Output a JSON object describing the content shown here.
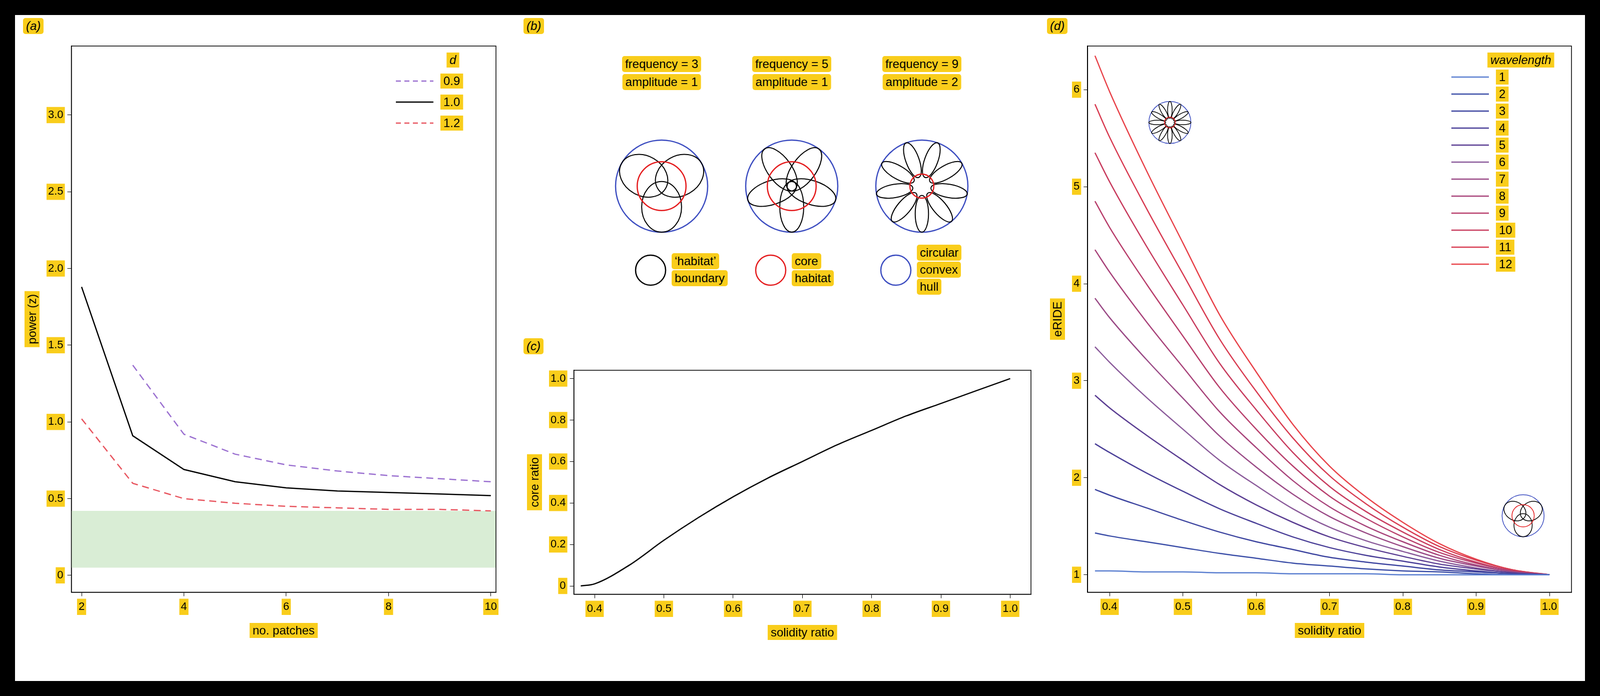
{
  "chart_data": [
    {
      "panel": "(a)",
      "type": "line",
      "x_label": "no. patches",
      "y_label": "power (z)",
      "x": [
        2,
        3,
        4,
        5,
        6,
        7,
        8,
        9,
        10
      ],
      "series": [
        {
          "name": "0.9",
          "color": "#9a6fd0",
          "line_style": "dashed",
          "values": [
            null,
            1.37,
            0.92,
            0.79,
            0.72,
            0.68,
            0.65,
            0.63,
            0.61
          ]
        },
        {
          "name": "1.0",
          "color": "#000000",
          "line_style": "solid",
          "values": [
            1.88,
            0.91,
            0.69,
            0.61,
            0.57,
            0.55,
            0.54,
            0.53,
            0.52
          ]
        },
        {
          "name": "1.2",
          "color": "#e8555f",
          "line_style": "dashed",
          "values": [
            1.02,
            0.6,
            0.5,
            0.47,
            0.45,
            0.44,
            0.43,
            0.43,
            0.42
          ]
        }
      ],
      "legend_title": "d",
      "legend": "top-right",
      "band": {
        "y": [
          0.05,
          0.42
        ],
        "color": "#d9edd5"
      },
      "xlim": [
        1.8,
        10.1
      ],
      "xticks": [
        2,
        4,
        6,
        8,
        10
      ],
      "ylim": [
        -0.11,
        3.45
      ],
      "yticks": [
        0,
        0.5,
        {
          "value": 1,
          "label": "1.0"
        },
        1.5,
        {
          "value": 2,
          "label": "2.0"
        },
        2.5,
        {
          "value": 3,
          "label": "3.0"
        }
      ],
      "grid": false
    },
    {
      "panel": "(c)",
      "type": "line",
      "x_label": "solidity ratio",
      "y_label": "core ratio",
      "x": [
        0.38,
        0.4,
        0.45,
        0.5,
        0.55,
        0.6,
        0.65,
        0.7,
        0.75,
        0.8,
        0.85,
        0.9,
        0.95,
        1.0
      ],
      "values": [
        0,
        0.01,
        0.1,
        0.22,
        0.33,
        0.43,
        0.52,
        0.6,
        0.68,
        0.75,
        0.82,
        0.88,
        0.94,
        1.0
      ],
      "color": "#000000",
      "xlim": [
        0.37,
        1.03
      ],
      "xticks": [
        0.4,
        0.5,
        0.6,
        0.7,
        0.8,
        0.9,
        {
          "value": 1,
          "label": "1.0"
        }
      ],
      "ylim": [
        -0.04,
        1.04
      ],
      "yticks": [
        0,
        0.2,
        0.4,
        0.6,
        0.8,
        {
          "value": 1,
          "label": "1.0"
        }
      ],
      "grid": false
    },
    {
      "panel": "(d)",
      "type": "line",
      "x_label": "solidity ratio",
      "y_label": "eRIDE",
      "x": [
        0.38,
        0.4,
        0.45,
        0.5,
        0.55,
        0.6,
        0.65,
        0.7,
        0.75,
        0.8,
        0.85,
        0.9,
        0.95,
        1.0
      ],
      "series": [
        {
          "name": "1",
          "color": "#5b7fd0",
          "values": [
            1.04,
            1.04,
            1.03,
            1.03,
            1.02,
            1.02,
            1.01,
            1.01,
            1.01,
            1.0,
            1.0,
            1.0,
            1.0,
            1.0
          ]
        },
        {
          "name": "2",
          "color": "#3c4fa8",
          "values": [
            1.43,
            1.4,
            1.34,
            1.28,
            1.22,
            1.17,
            1.12,
            1.09,
            1.06,
            1.04,
            1.03,
            1.01,
            1.0,
            1.0
          ]
        },
        {
          "name": "3",
          "color": "#3d45a0",
          "values": [
            1.88,
            1.82,
            1.69,
            1.56,
            1.44,
            1.34,
            1.26,
            1.18,
            1.13,
            1.09,
            1.05,
            1.03,
            1.01,
            1.0
          ]
        },
        {
          "name": "4",
          "color": "#4a3f98",
          "values": [
            2.35,
            2.26,
            2.05,
            1.86,
            1.68,
            1.53,
            1.39,
            1.28,
            1.2,
            1.14,
            1.08,
            1.04,
            1.01,
            1.0
          ]
        },
        {
          "name": "5",
          "color": "#5a3d92",
          "values": [
            2.85,
            2.72,
            2.44,
            2.18,
            1.93,
            1.72,
            1.54,
            1.39,
            1.28,
            1.19,
            1.11,
            1.06,
            1.02,
            1.0
          ]
        },
        {
          "name": "6",
          "color": "#8a5a9a",
          "values": [
            3.35,
            3.19,
            2.83,
            2.5,
            2.18,
            1.92,
            1.68,
            1.49,
            1.35,
            1.24,
            1.14,
            1.07,
            1.02,
            1.0
          ]
        },
        {
          "name": "7",
          "color": "#9a4a86",
          "values": [
            3.85,
            3.65,
            3.22,
            2.82,
            2.43,
            2.11,
            1.83,
            1.6,
            1.43,
            1.29,
            1.17,
            1.09,
            1.03,
            1.0
          ]
        },
        {
          "name": "8",
          "color": "#a8437a",
          "values": [
            4.35,
            4.12,
            3.61,
            3.14,
            2.68,
            2.31,
            1.97,
            1.7,
            1.5,
            1.34,
            1.2,
            1.1,
            1.03,
            1.0
          ]
        },
        {
          "name": "9",
          "color": "#b83f6c",
          "values": [
            4.85,
            4.58,
            4.0,
            3.46,
            2.93,
            2.5,
            2.12,
            1.81,
            1.58,
            1.39,
            1.23,
            1.12,
            1.04,
            1.0
          ]
        },
        {
          "name": "10",
          "color": "#c83c5e",
          "values": [
            5.35,
            5.05,
            4.39,
            3.78,
            3.18,
            2.7,
            2.26,
            1.91,
            1.65,
            1.44,
            1.26,
            1.13,
            1.04,
            1.0
          ]
        },
        {
          "name": "11",
          "color": "#d83c52",
          "values": [
            5.85,
            5.51,
            4.78,
            4.1,
            3.43,
            2.89,
            2.41,
            2.02,
            1.73,
            1.49,
            1.29,
            1.15,
            1.05,
            1.0
          ]
        },
        {
          "name": "12",
          "color": "#e8434a",
          "values": [
            6.35,
            5.98,
            5.17,
            4.42,
            3.68,
            3.09,
            2.55,
            2.12,
            1.8,
            1.54,
            1.32,
            1.16,
            1.05,
            1.0
          ]
        }
      ],
      "legend_title": "wavelength",
      "legend": "top-right",
      "xlim": [
        0.37,
        1.03
      ],
      "xticks": [
        0.4,
        0.5,
        0.6,
        0.7,
        0.8,
        0.9,
        {
          "value": 1,
          "label": "1.0"
        }
      ],
      "ylim": [
        0.82,
        6.45
      ],
      "yticks": [
        1,
        2,
        3,
        4,
        5,
        6
      ],
      "grid": false
    }
  ],
  "diagram": {
    "panel": "(b)",
    "shapes": [
      {
        "frequency": {
          "value": 3,
          "label": "frequency = 3"
        },
        "amplitude": {
          "value": 1,
          "label": "amplitude = 1"
        }
      },
      {
        "frequency": {
          "value": 5,
          "label": "frequency = 5"
        },
        "amplitude": {
          "value": 1,
          "label": "amplitude = 1"
        }
      },
      {
        "frequency": {
          "value": 9,
          "label": "frequency = 9"
        },
        "amplitude": {
          "value": 2,
          "label": "amplitude = 2"
        }
      }
    ],
    "legend": [
      {
        "label": "‘habitat’ boundary",
        "color": "#000000"
      },
      {
        "label": "core habitat",
        "color": "#e41a1c"
      },
      {
        "label": "circular convex hull",
        "color": "#3b4cc0"
      }
    ]
  }
}
